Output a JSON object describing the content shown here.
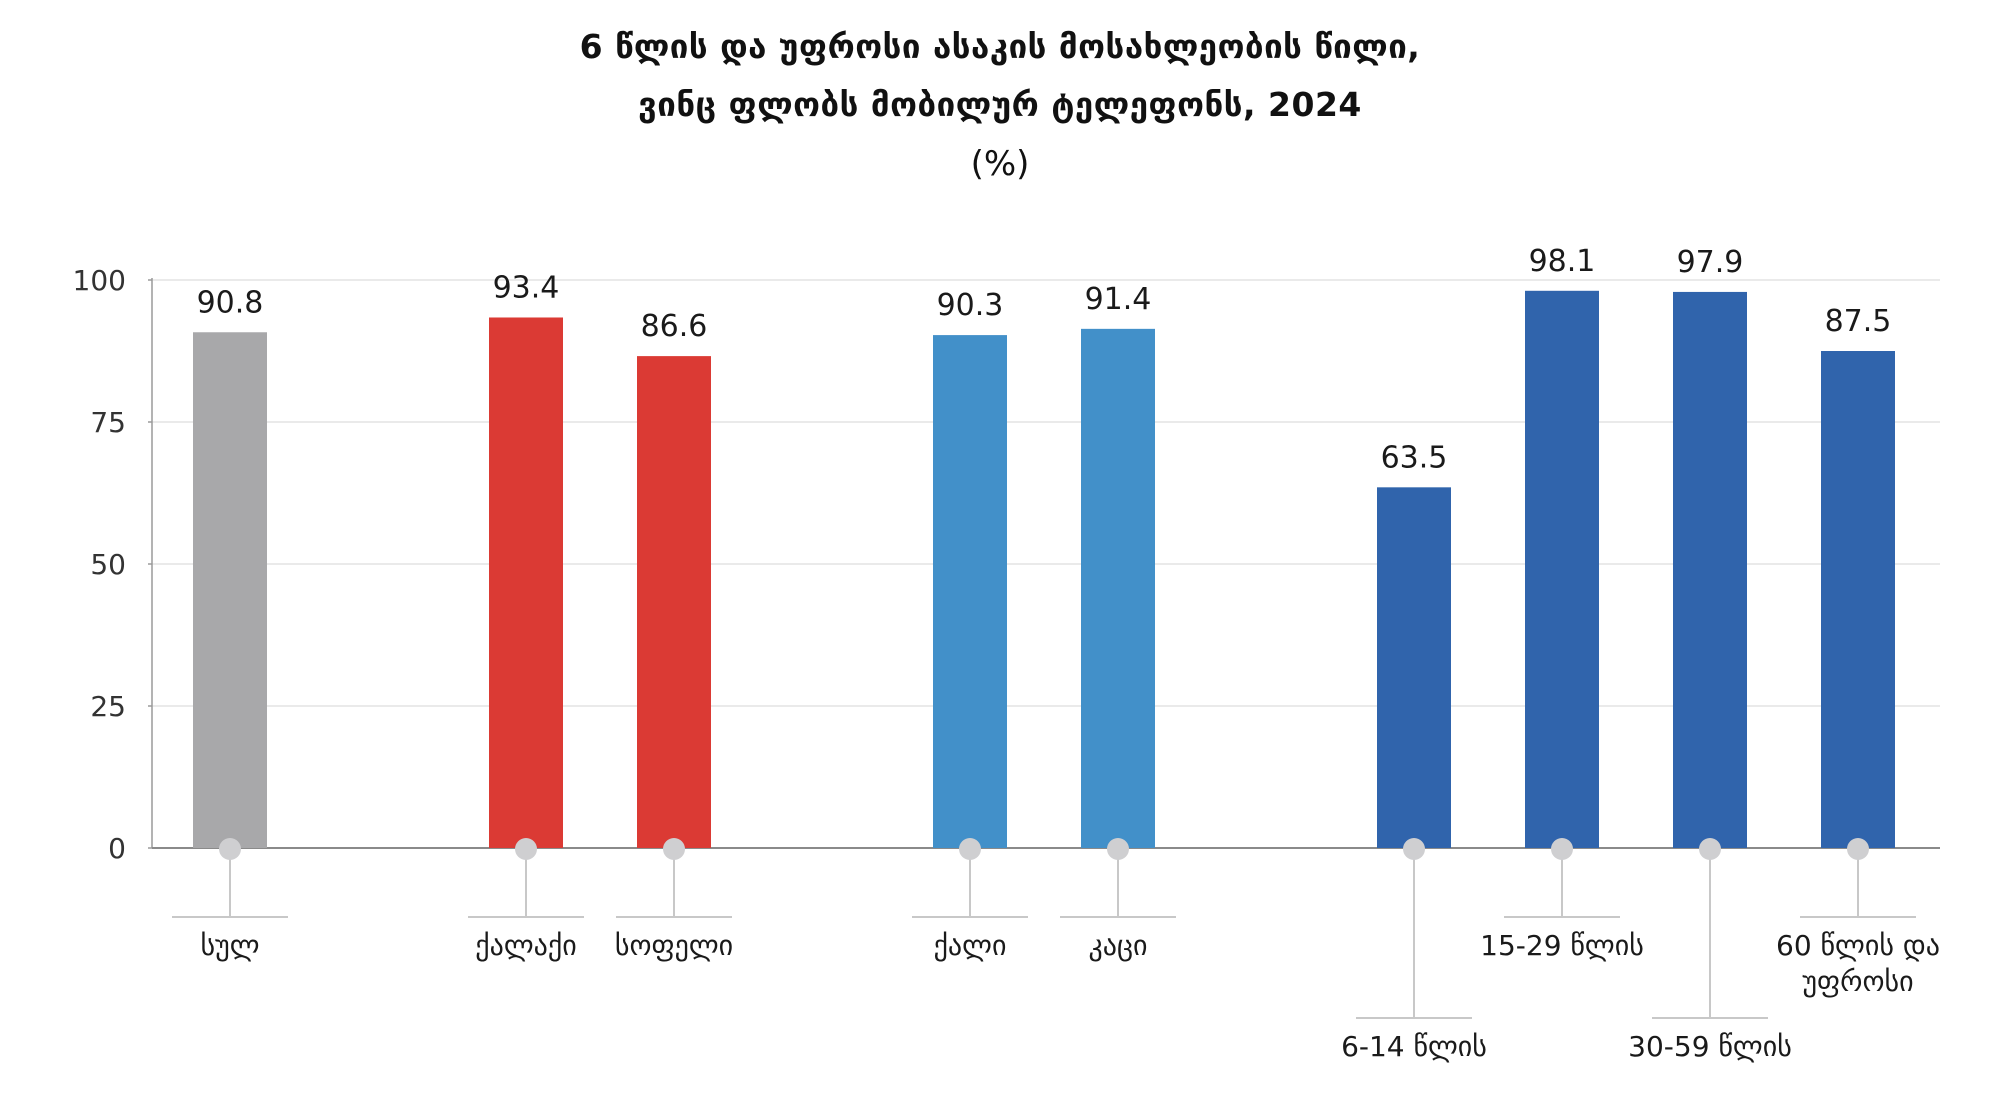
{
  "title": {
    "line1": "6 წლის და უფროსი ასაკის მოსახლეობის წილი,",
    "line2": "ვინც ფლობს მობილურ ტელეფონს, 2024",
    "unit": "(%)"
  },
  "chart_data": {
    "type": "bar",
    "ylim": [
      0,
      100
    ],
    "yticks": [
      0,
      25,
      50,
      75,
      100
    ],
    "grid": true,
    "categories": [
      {
        "label": [
          "სულ"
        ],
        "value": 90.8,
        "group": "total",
        "color": "#a8a8aa",
        "label_level": "high"
      },
      {
        "label": [
          "ქალაქი"
        ],
        "value": 93.4,
        "group": "settlement",
        "color": "#db3a34",
        "label_level": "high"
      },
      {
        "label": [
          "სოფელი"
        ],
        "value": 86.6,
        "group": "settlement",
        "color": "#db3a34",
        "label_level": "high"
      },
      {
        "label": [
          "ქალი"
        ],
        "value": 90.3,
        "group": "sex",
        "color": "#4290c9",
        "label_level": "high"
      },
      {
        "label": [
          "კაცი"
        ],
        "value": 91.4,
        "group": "sex",
        "color": "#4290c9",
        "label_level": "high"
      },
      {
        "label": [
          "6-14 წლის"
        ],
        "value": 63.5,
        "group": "age",
        "color": "#3064ac",
        "label_level": "low"
      },
      {
        "label": [
          "15-29 წლის"
        ],
        "value": 98.1,
        "group": "age",
        "color": "#3064ac",
        "label_level": "high"
      },
      {
        "label": [
          "30-59 წლის"
        ],
        "value": 97.9,
        "group": "age",
        "color": "#3064ac",
        "label_level": "low"
      },
      {
        "label": [
          "60 წლის და",
          "უფროსი"
        ],
        "value": 87.5,
        "group": "age",
        "color": "#3064ac",
        "label_level": "high"
      }
    ]
  }
}
